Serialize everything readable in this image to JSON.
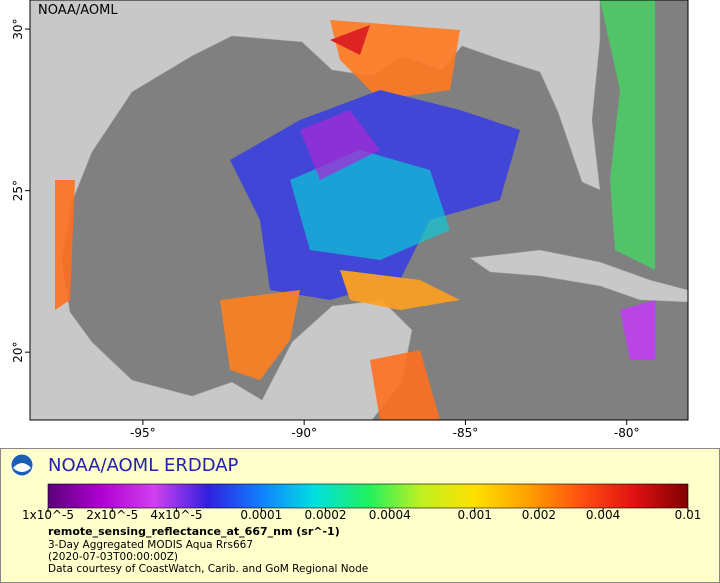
{
  "map": {
    "label": "NOAA/AOML",
    "xlim": [
      -98.5,
      -78.1
    ],
    "ylim": [
      17.9,
      30.9
    ],
    "xticks": [
      {
        "value": -95,
        "label": "-95°"
      },
      {
        "value": -90,
        "label": "-90°"
      },
      {
        "value": -85,
        "label": "-85°"
      },
      {
        "value": -80,
        "label": "-80°"
      }
    ],
    "yticks": [
      {
        "value": 20,
        "label": "20°"
      },
      {
        "value": 25,
        "label": "25°"
      },
      {
        "value": 30,
        "label": "30°"
      }
    ]
  },
  "legend": {
    "title": "NOAA/AOML ERDDAP",
    "colorbar": {
      "log_scale": true,
      "lim": [
        1e-05,
        0.01
      ],
      "ticks": [
        {
          "value": 1e-05,
          "label": "1x10^-5"
        },
        {
          "value": 2e-05,
          "label": "2x10^-5"
        },
        {
          "value": 4e-05,
          "label": "4x10^-5"
        },
        0.0001,
        0.0002,
        0.0004,
        0.001,
        0.002,
        0.004,
        0.01
      ],
      "colors": [
        "#5a007a",
        "#b000d0",
        "#d040f0",
        "#3020e0",
        "#1080ff",
        "#00e0e0",
        "#20f060",
        "#c0f020",
        "#ffe000",
        "#ffa000",
        "#ff5010",
        "#e01010",
        "#800000"
      ]
    },
    "variable": "remote_sensing_reflectance_at_667_nm (sr^-1)",
    "lines": [
      "3-Day Aggregated MODIS Aqua Rrs667",
      "(2020-07-03T00:00:00Z)",
      "Data courtesy of CoastWatch, Carib. and GoM Regional Node"
    ]
  }
}
